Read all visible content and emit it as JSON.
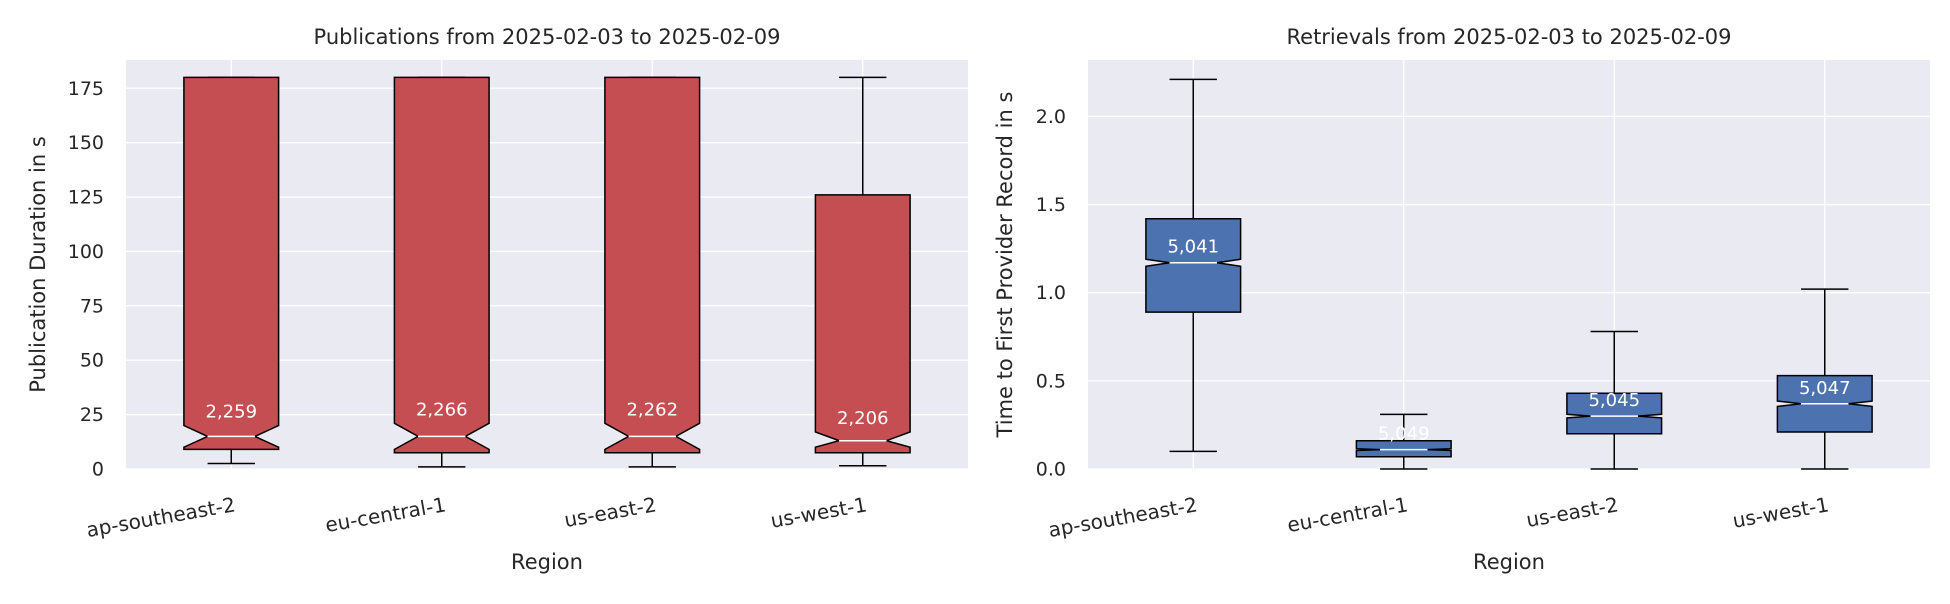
{
  "colors": {
    "plot_background": "#eaeaf2",
    "grid": "#ffffff",
    "publication_box": "#c44e52",
    "retrieval_box": "#4c72b0",
    "edge": "#000000",
    "median": "#ffffff",
    "count_label": "#ffffff"
  },
  "chart_data": [
    {
      "type": "boxplot",
      "title": "Publications from 2025-02-03 to 2025-02-09",
      "xlabel": "Region",
      "ylabel": "Publication Duration in s",
      "ylim": [
        0,
        188
      ],
      "yticks": [
        0,
        25,
        50,
        75,
        100,
        125,
        150,
        175
      ],
      "ytick_labels": [
        "0",
        "25",
        "50",
        "75",
        "100",
        "125",
        "150",
        "175"
      ],
      "grid": true,
      "notched": true,
      "categories": [
        "ap-southeast-2",
        "eu-central-1",
        "us-east-2",
        "us-west-1"
      ],
      "boxes": [
        {
          "whislo": 2.5,
          "q1": 9,
          "med": 15,
          "q3": 180,
          "whishi": 180,
          "notch_lo": 10,
          "notch_hi": 20,
          "count": "2,259"
        },
        {
          "whislo": 1,
          "q1": 7.5,
          "med": 15,
          "q3": 180,
          "whishi": 180,
          "notch_lo": 9,
          "notch_hi": 21,
          "count": "2,266"
        },
        {
          "whislo": 1,
          "q1": 7.5,
          "med": 15,
          "q3": 180,
          "whishi": 180,
          "notch_lo": 9,
          "notch_hi": 21,
          "count": "2,262"
        },
        {
          "whislo": 1.5,
          "q1": 7.5,
          "med": 13,
          "q3": 126,
          "whishi": 180,
          "notch_lo": 10,
          "notch_hi": 17,
          "count": "2,206"
        }
      ]
    },
    {
      "type": "boxplot",
      "title": "Retrievals from 2025-02-03 to 2025-02-09",
      "xlabel": "Region",
      "ylabel": "Time to First Provider Record in s",
      "ylim": [
        0,
        2.32
      ],
      "yticks": [
        0,
        0.5,
        1.0,
        1.5,
        2.0
      ],
      "ytick_labels": [
        "0.0",
        "0.5",
        "1.0",
        "1.5",
        "2.0"
      ],
      "grid": true,
      "notched": true,
      "categories": [
        "ap-southeast-2",
        "eu-central-1",
        "us-east-2",
        "us-west-1"
      ],
      "boxes": [
        {
          "whislo": 0.1,
          "q1": 0.89,
          "med": 1.17,
          "q3": 1.42,
          "whishi": 2.21,
          "notch_lo": 1.15,
          "notch_hi": 1.19,
          "count": "5,041"
        },
        {
          "whislo": 0.0,
          "q1": 0.07,
          "med": 0.11,
          "q3": 0.16,
          "whishi": 0.31,
          "notch_lo": 0.105,
          "notch_hi": 0.115,
          "count": "5,049"
        },
        {
          "whislo": 0.0,
          "q1": 0.2,
          "med": 0.3,
          "q3": 0.43,
          "whishi": 0.78,
          "notch_lo": 0.29,
          "notch_hi": 0.31,
          "count": "5,045"
        },
        {
          "whislo": 0.0,
          "q1": 0.21,
          "med": 0.37,
          "q3": 0.53,
          "whishi": 1.02,
          "notch_lo": 0.355,
          "notch_hi": 0.385,
          "count": "5,047"
        }
      ]
    }
  ]
}
